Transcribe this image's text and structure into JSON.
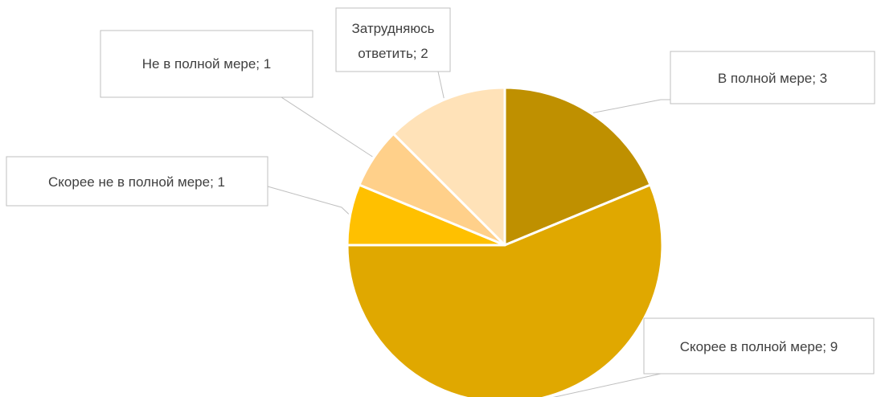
{
  "chart_data": {
    "type": "pie",
    "title": "",
    "slices": [
      {
        "category": "В полной мере",
        "value": 3,
        "label": "В полной мере; 3",
        "color": "#bf9000"
      },
      {
        "category": "Скорее в полной мере",
        "value": 9,
        "label": "Скорее в полной мере; 9",
        "color": "#e0a800"
      },
      {
        "category": "Скорее не в полной мере",
        "value": 1,
        "label": "Скорее не в полной мере; 1",
        "color": "#ffc000"
      },
      {
        "category": "Не в полной мере",
        "value": 1,
        "label": "Не в полной мере; 1",
        "color": "#ffd08a"
      },
      {
        "category": "Затрудняюсь ответить",
        "value": 2,
        "label_lines": [
          "Затрудняюсь",
          "ответить; 2"
        ],
        "color": "#ffe2b8"
      }
    ],
    "legend": "none",
    "data_labels": "callouts"
  }
}
